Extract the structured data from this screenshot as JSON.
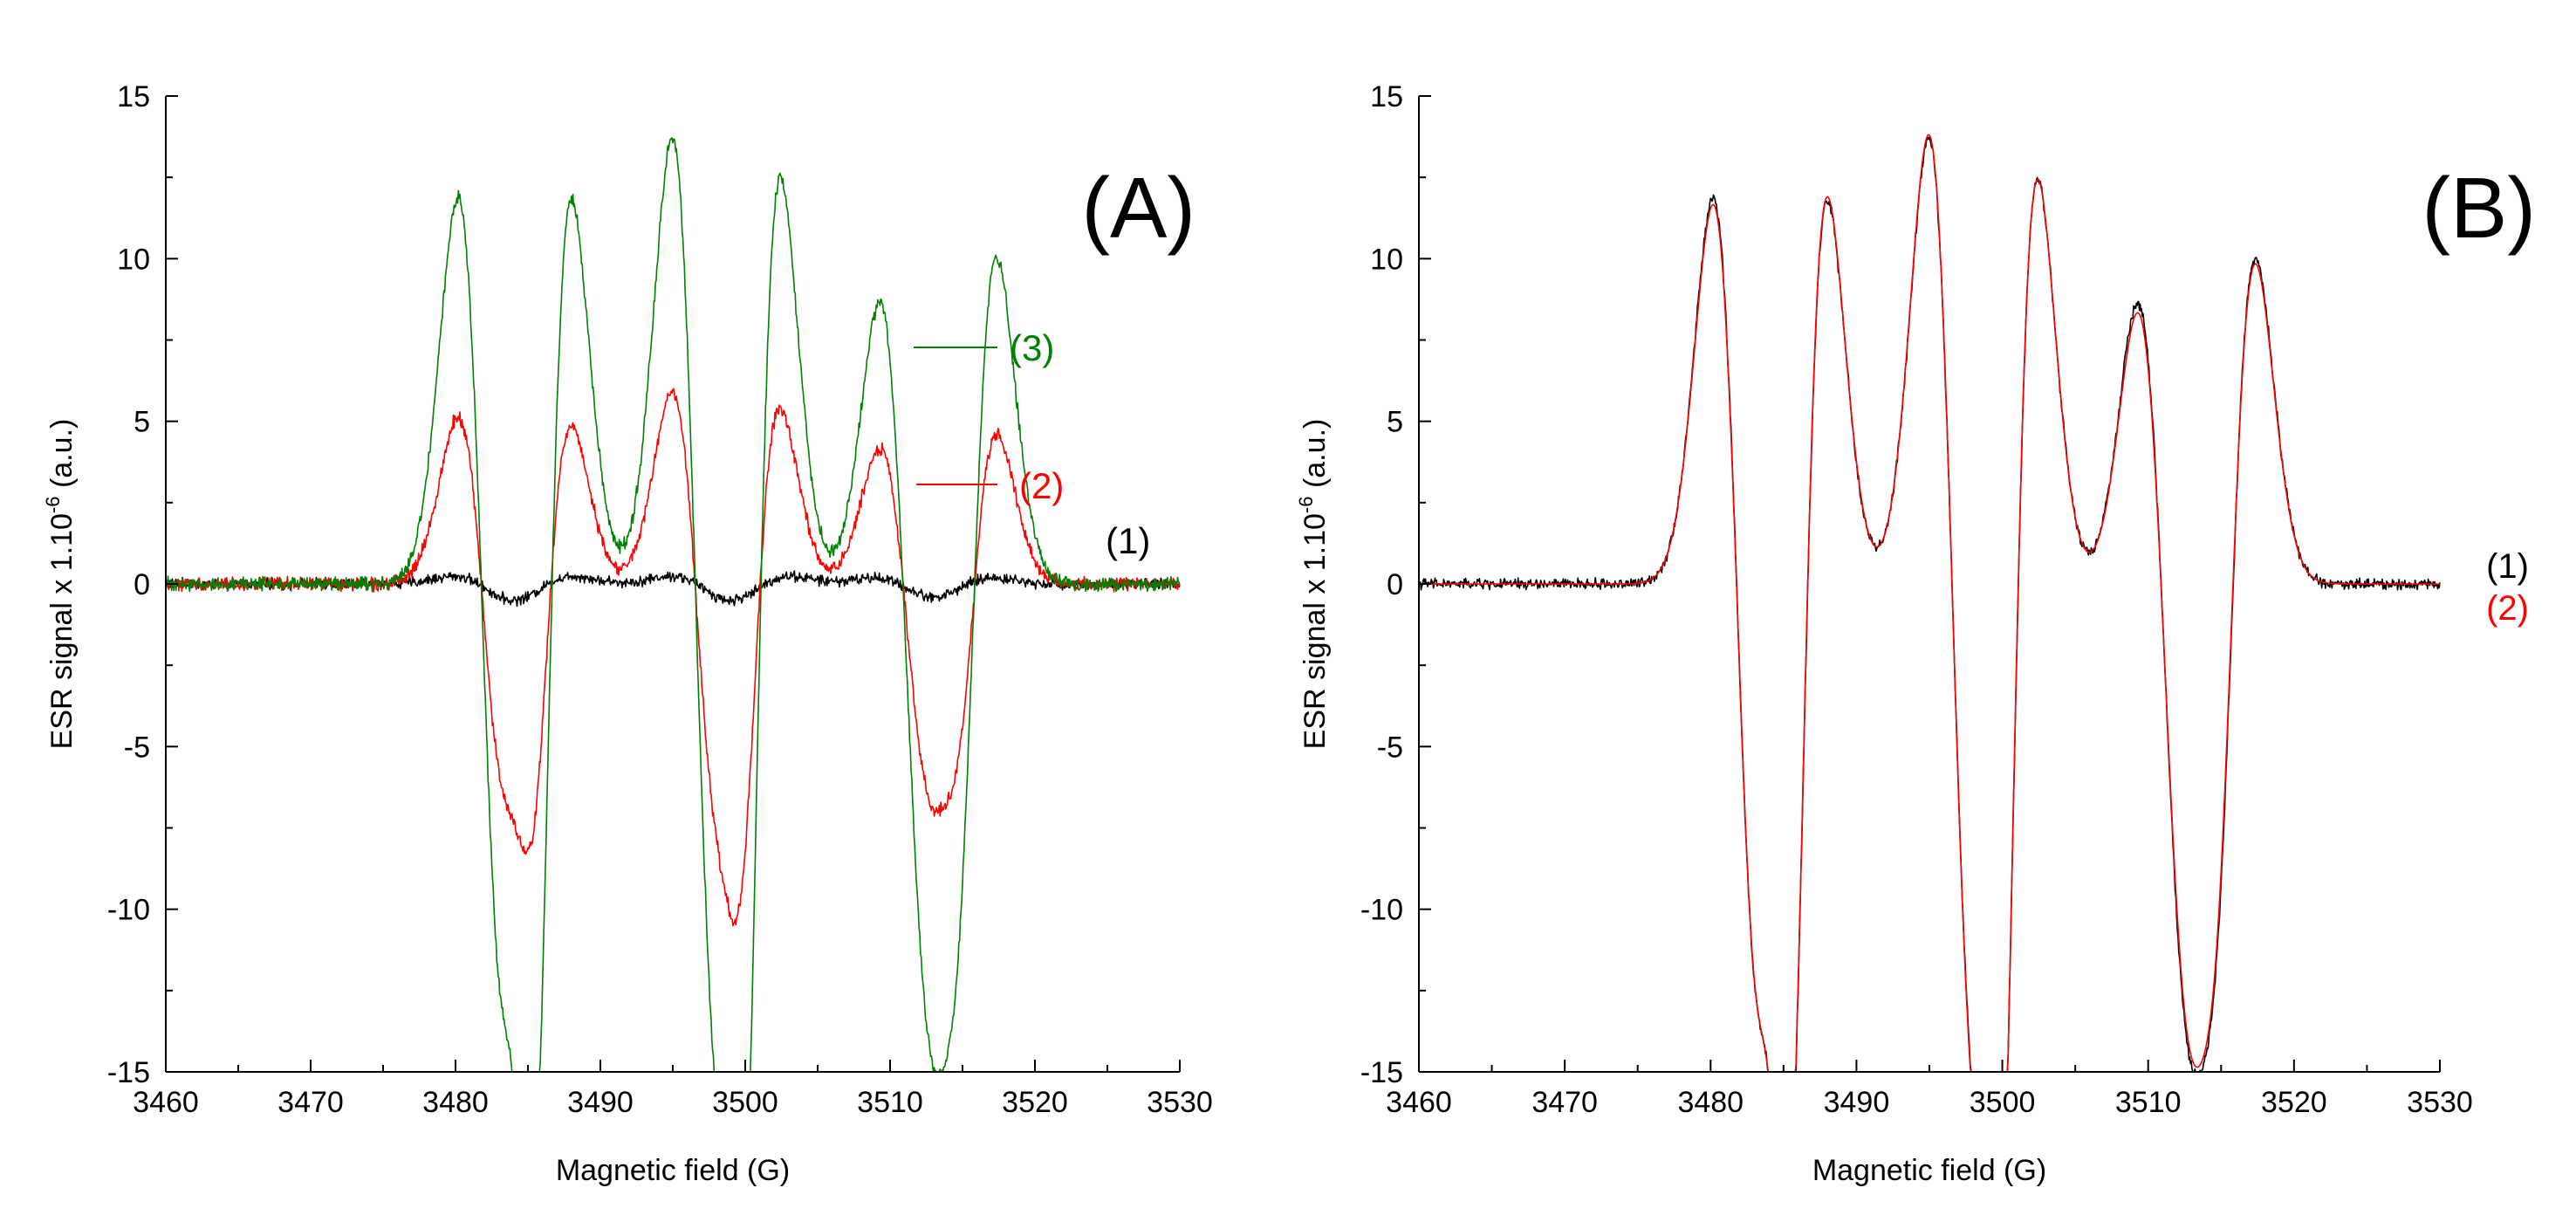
{
  "chart_data": [
    {
      "type": "line",
      "panel_label": "(A)",
      "xlabel": "Magnetic field (G)",
      "ylabel_main": "ESR signal x 1.10",
      "ylabel_sup": "-6",
      "ylabel_tail": " (a.u.)",
      "xlim": [
        3460,
        3530
      ],
      "ylim": [
        -15,
        15
      ],
      "xticks": [
        3460,
        3470,
        3480,
        3490,
        3500,
        3510,
        3520,
        3530
      ],
      "yticks": [
        -15,
        -10,
        -5,
        0,
        5,
        10,
        15
      ],
      "xtick_labels": [
        "3460",
        "3470",
        "3480",
        "3490",
        "3500",
        "3510",
        "3520",
        "3530"
      ],
      "ytick_labels": [
        "-15",
        "-10",
        "-5",
        "0",
        "5",
        "10",
        "15"
      ],
      "grid": false,
      "series": [
        {
          "name": "(1)",
          "color": "#000000",
          "peaks": [
            [
              3482,
              0.25,
              2.0
            ],
            [
              3486,
              -0.25,
              2.0
            ],
            [
              3497,
              0.25,
              2.0
            ],
            [
              3501,
              -0.25,
              2.0
            ],
            [
              3511,
              0.2,
              2.0
            ],
            [
              3515,
              -0.2,
              2.0
            ]
          ],
          "noise": 0.2
        },
        {
          "name": "(2)",
          "color": "#ff0000",
          "peaks": [
            [
              3481.9,
              5.2,
              1.7
            ],
            [
              3484.8,
              2.3,
              1.0
            ],
            [
              3486.2,
              -5.0,
              1.7
            ],
            [
              3496.7,
              6.0,
              1.7
            ],
            [
              3499.2,
              2.3,
              1.0
            ],
            [
              3500.6,
              -5.6,
              1.7
            ],
            [
              3511.0,
              4.2,
              1.7
            ],
            [
              3514.4,
              1.0,
              1.0
            ],
            [
              3515.6,
              -4.7,
              1.7
            ]
          ],
          "noise": 0.25
        },
        {
          "name": "(3)",
          "color": "#008000",
          "peaks": [
            [
              3481.9,
              12.0,
              1.7
            ],
            [
              3484.8,
              7.8,
              1.0
            ],
            [
              3486.2,
              -12.2,
              1.7
            ],
            [
              3496.7,
              14.0,
              1.7
            ],
            [
              3499.2,
              7.5,
              1.0
            ],
            [
              3500.6,
              -13.0,
              1.7
            ],
            [
              3511.0,
              8.7,
              1.7
            ],
            [
              3514.4,
              1.8,
              1.0
            ],
            [
              3515.6,
              -10.2,
              1.7
            ]
          ],
          "noise": 0.25
        }
      ],
      "annotations": [
        {
          "text": "(3)",
          "color": "#008000",
          "points_to_series": "(3)"
        },
        {
          "text": "(2)",
          "color": "#ff0000",
          "points_to_series": "(2)"
        },
        {
          "text": "(1)",
          "color": "#000000",
          "points_to_series": "(1)"
        }
      ]
    },
    {
      "type": "line",
      "panel_label": "(B)",
      "xlabel": "Magnetic field (G)",
      "ylabel_main": "ESR signal x 1.10",
      "ylabel_sup": "-6",
      "ylabel_tail": " (a.u.)",
      "xlim": [
        3460,
        3530
      ],
      "ylim": [
        -15,
        15
      ],
      "xticks": [
        3460,
        3470,
        3480,
        3490,
        3500,
        3510,
        3520,
        3530
      ],
      "yticks": [
        -15,
        -10,
        -5,
        0,
        5,
        10,
        15
      ],
      "xtick_labels": [
        "3460",
        "3470",
        "3480",
        "3490",
        "3500",
        "3510",
        "3520",
        "3530"
      ],
      "ytick_labels": [
        "-15",
        "-10",
        "-5",
        "0",
        "5",
        "10",
        "15"
      ],
      "grid": false,
      "series": [
        {
          "name": "(1)",
          "color": "#000000",
          "peaks": [
            [
              3481.9,
              12.0,
              1.7
            ],
            [
              3484.8,
              7.8,
              1.0
            ],
            [
              3486.2,
              -12.2,
              1.7
            ],
            [
              3496.7,
              14.0,
              1.7
            ],
            [
              3499.2,
              7.5,
              1.0
            ],
            [
              3500.6,
              -13.0,
              1.7
            ],
            [
              3511.0,
              8.7,
              1.7
            ],
            [
              3514.4,
              1.8,
              1.0
            ],
            [
              3515.6,
              -10.2,
              1.7
            ]
          ],
          "noise": 0.2
        },
        {
          "name": "(2)",
          "color": "#ff0000",
          "peaks": [
            [
              3481.9,
              11.8,
              1.7
            ],
            [
              3484.8,
              7.7,
              1.0
            ],
            [
              3486.2,
              -12.3,
              1.7
            ],
            [
              3496.7,
              14.1,
              1.7
            ],
            [
              3499.2,
              7.4,
              1.0
            ],
            [
              3500.6,
              -13.0,
              1.7
            ],
            [
              3511.0,
              8.4,
              1.7
            ],
            [
              3514.4,
              1.6,
              1.0
            ],
            [
              3515.6,
              -10.0,
              1.7
            ]
          ],
          "noise": 0
        }
      ],
      "legend": [
        {
          "text": "(1)",
          "color": "#000000"
        },
        {
          "text": "(2)",
          "color": "#ff0000"
        }
      ]
    }
  ]
}
